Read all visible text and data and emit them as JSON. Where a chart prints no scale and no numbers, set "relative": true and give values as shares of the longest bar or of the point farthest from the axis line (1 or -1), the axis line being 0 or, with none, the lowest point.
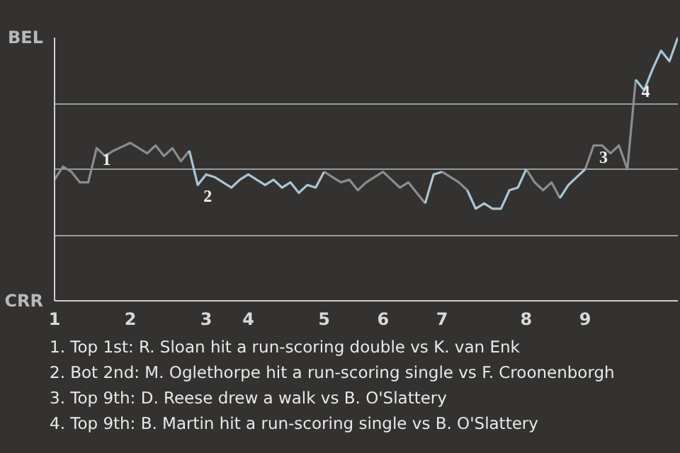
{
  "chart_data": {
    "type": "line",
    "relative": true,
    "categories": [
      "1",
      null,
      null,
      null,
      null,
      null,
      null,
      null,
      null,
      "2",
      null,
      null,
      null,
      null,
      null,
      null,
      null,
      null,
      "3",
      null,
      null,
      null,
      null,
      "4",
      null,
      null,
      null,
      null,
      null,
      null,
      null,
      null,
      "5",
      null,
      null,
      null,
      null,
      null,
      null,
      "6",
      null,
      null,
      null,
      null,
      null,
      null,
      "7",
      null,
      null,
      null,
      null,
      null,
      null,
      null,
      null,
      null,
      "8",
      null,
      null,
      null,
      null,
      null,
      null,
      "9",
      null,
      null,
      null,
      null,
      null,
      null,
      null,
      null,
      null,
      null,
      null
    ],
    "grid": "y",
    "marker": "none",
    "line_style": "solid",
    "series": [
      {
        "color": "#8c8c8c",
        "values": [
          0.46,
          0.51,
          0.49,
          0.45,
          0.45,
          0.58,
          0.55,
          0.57,
          0.585,
          0.6,
          0.58,
          0.56,
          0.59,
          0.55,
          0.58,
          0.53,
          0.57,
          null,
          null,
          null,
          null,
          null,
          null,
          null,
          null,
          null,
          null,
          null,
          null,
          null,
          null,
          null,
          0.49,
          0.47,
          0.45,
          0.46,
          0.42,
          0.45,
          0.47,
          0.49,
          0.46,
          0.43,
          0.45,
          0.41,
          0.37,
          null,
          0.49,
          0.47,
          0.45,
          0.42,
          null,
          null,
          null,
          null,
          null,
          null,
          0.5,
          0.45,
          0.42,
          0.45,
          0.39,
          null,
          null,
          0.5,
          0.59,
          0.59,
          0.56,
          0.59,
          0.5,
          0.84,
          null,
          null,
          null,
          null,
          null
        ]
      },
      {
        "color": "#a9c6d6",
        "values": [
          null,
          null,
          null,
          null,
          null,
          null,
          null,
          null,
          null,
          null,
          null,
          null,
          null,
          null,
          null,
          null,
          0.57,
          0.44,
          0.48,
          0.47,
          0.45,
          0.43,
          0.46,
          0.48,
          0.46,
          0.44,
          0.46,
          0.43,
          0.45,
          0.41,
          0.44,
          0.43,
          0.49,
          null,
          null,
          null,
          null,
          null,
          null,
          null,
          null,
          null,
          null,
          null,
          0.37,
          0.48,
          0.49,
          null,
          null,
          0.42,
          0.35,
          0.37,
          0.35,
          0.35,
          0.42,
          0.43,
          0.5,
          null,
          null,
          null,
          0.39,
          0.44,
          0.47,
          0.5,
          null,
          null,
          null,
          null,
          null,
          0.84,
          0.8,
          0.88,
          0.95,
          0.91,
          1.0
        ]
      }
    ],
    "annotations": [
      "BEL",
      "CRR",
      {
        "text": "1",
        "y": 0.58
      },
      {
        "text": "2",
        "y": 0.44
      },
      {
        "text": "3",
        "y": 0.59
      },
      {
        "text": "4",
        "y": 0.84
      },
      "1. Top 1st: R. Sloan hit a run-scoring double vs K. van Enk",
      "2. Bot 2nd: M. Oglethorpe hit a run-scoring single vs F. Croonenborgh",
      "3. Top 9th: D. Reese drew a walk vs B. O'Slattery",
      "4. Top 9th: B. Martin hit a run-scoring single vs B. O'Slattery"
    ]
  }
}
